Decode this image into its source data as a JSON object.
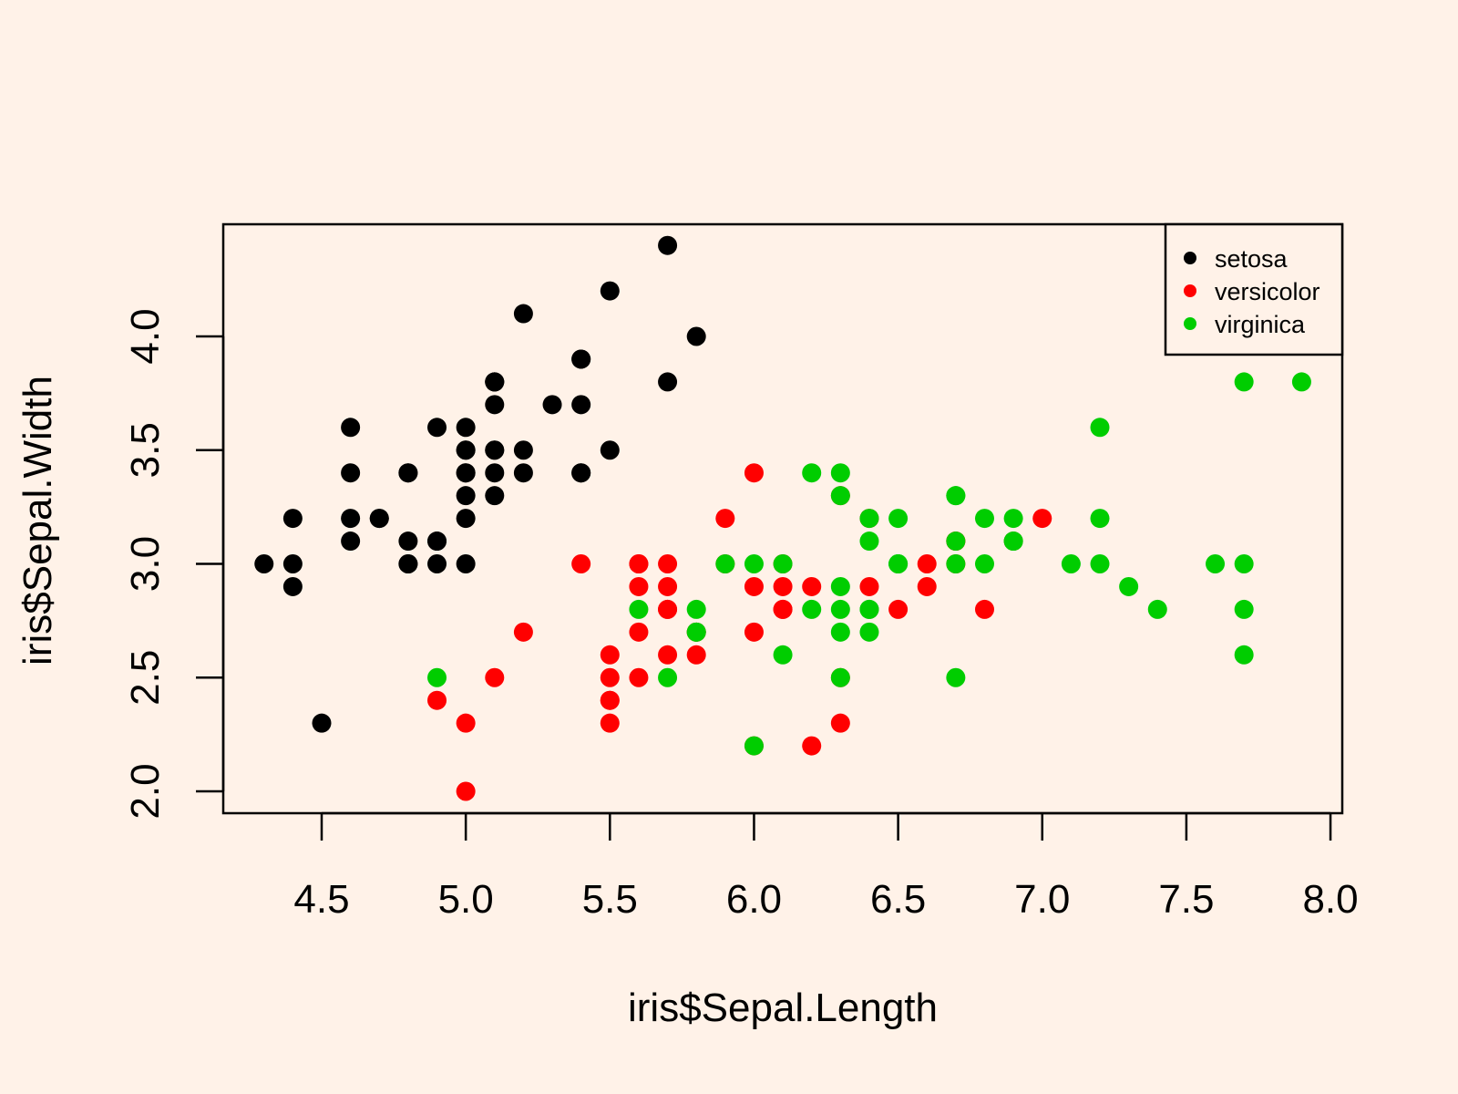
{
  "chart_data": {
    "type": "scatter",
    "title": "",
    "xlabel": "iris$Sepal.Length",
    "ylabel": "iris$Sepal.Width",
    "xlim": [
      4.3,
      7.9
    ],
    "ylim": [
      2.0,
      4.4
    ],
    "xticks": [
      "4.5",
      "5.0",
      "5.5",
      "6.0",
      "6.5",
      "7.0",
      "7.5",
      "8.0"
    ],
    "yticks": [
      "2.0",
      "2.5",
      "3.0",
      "3.5",
      "4.0"
    ],
    "grid": false,
    "legend_position": "top-right",
    "background": "#FFF2E8",
    "series": [
      {
        "name": "setosa",
        "color": "#000000",
        "points": [
          [
            5.1,
            3.5
          ],
          [
            4.9,
            3.0
          ],
          [
            4.7,
            3.2
          ],
          [
            4.6,
            3.1
          ],
          [
            5.0,
            3.6
          ],
          [
            5.4,
            3.9
          ],
          [
            4.6,
            3.4
          ],
          [
            5.0,
            3.4
          ],
          [
            4.4,
            2.9
          ],
          [
            4.9,
            3.1
          ],
          [
            5.4,
            3.7
          ],
          [
            4.8,
            3.4
          ],
          [
            4.8,
            3.0
          ],
          [
            4.3,
            3.0
          ],
          [
            5.8,
            4.0
          ],
          [
            5.7,
            4.4
          ],
          [
            5.4,
            3.9
          ],
          [
            5.1,
            3.5
          ],
          [
            5.7,
            3.8
          ],
          [
            5.1,
            3.8
          ],
          [
            5.4,
            3.4
          ],
          [
            5.1,
            3.7
          ],
          [
            4.6,
            3.6
          ],
          [
            5.1,
            3.3
          ],
          [
            4.8,
            3.4
          ],
          [
            5.0,
            3.0
          ],
          [
            5.0,
            3.4
          ],
          [
            5.2,
            3.5
          ],
          [
            5.2,
            3.4
          ],
          [
            4.7,
            3.2
          ],
          [
            4.8,
            3.1
          ],
          [
            5.4,
            3.4
          ],
          [
            5.2,
            4.1
          ],
          [
            5.5,
            4.2
          ],
          [
            4.9,
            3.1
          ],
          [
            5.0,
            3.2
          ],
          [
            5.5,
            3.5
          ],
          [
            4.9,
            3.6
          ],
          [
            4.4,
            3.0
          ],
          [
            5.1,
            3.4
          ],
          [
            5.0,
            3.5
          ],
          [
            4.5,
            2.3
          ],
          [
            4.4,
            3.2
          ],
          [
            5.0,
            3.5
          ],
          [
            5.1,
            3.8
          ],
          [
            4.8,
            3.0
          ],
          [
            5.1,
            3.8
          ],
          [
            4.6,
            3.2
          ],
          [
            5.3,
            3.7
          ],
          [
            5.0,
            3.3
          ]
        ]
      },
      {
        "name": "versicolor",
        "color": "#FF0000",
        "points": [
          [
            7.0,
            3.2
          ],
          [
            6.4,
            3.2
          ],
          [
            6.9,
            3.1
          ],
          [
            5.5,
            2.3
          ],
          [
            6.5,
            2.8
          ],
          [
            5.7,
            2.8
          ],
          [
            6.3,
            3.3
          ],
          [
            4.9,
            2.4
          ],
          [
            6.6,
            2.9
          ],
          [
            5.2,
            2.7
          ],
          [
            5.0,
            2.0
          ],
          [
            5.9,
            3.0
          ],
          [
            6.0,
            2.2
          ],
          [
            6.1,
            2.9
          ],
          [
            5.6,
            2.9
          ],
          [
            6.7,
            3.1
          ],
          [
            5.6,
            3.0
          ],
          [
            5.8,
            2.7
          ],
          [
            6.2,
            2.2
          ],
          [
            5.6,
            2.5
          ],
          [
            5.9,
            3.2
          ],
          [
            6.1,
            2.8
          ],
          [
            6.3,
            2.5
          ],
          [
            6.1,
            2.8
          ],
          [
            6.4,
            2.9
          ],
          [
            6.6,
            3.0
          ],
          [
            6.8,
            2.8
          ],
          [
            6.7,
            3.0
          ],
          [
            6.0,
            2.9
          ],
          [
            5.7,
            2.6
          ],
          [
            5.5,
            2.4
          ],
          [
            5.5,
            2.4
          ],
          [
            5.8,
            2.7
          ],
          [
            6.0,
            2.7
          ],
          [
            5.4,
            3.0
          ],
          [
            6.0,
            3.4
          ],
          [
            6.7,
            3.1
          ],
          [
            6.3,
            2.3
          ],
          [
            5.6,
            3.0
          ],
          [
            5.5,
            2.5
          ],
          [
            5.5,
            2.6
          ],
          [
            6.1,
            3.0
          ],
          [
            5.8,
            2.6
          ],
          [
            5.0,
            2.3
          ],
          [
            5.6,
            2.7
          ],
          [
            5.7,
            3.0
          ],
          [
            5.7,
            2.9
          ],
          [
            6.2,
            2.9
          ],
          [
            5.1,
            2.5
          ],
          [
            5.7,
            2.8
          ]
        ]
      },
      {
        "name": "virginica",
        "color": "#00CD00",
        "points": [
          [
            6.3,
            3.3
          ],
          [
            5.8,
            2.7
          ],
          [
            7.1,
            3.0
          ],
          [
            6.3,
            2.9
          ],
          [
            6.5,
            3.0
          ],
          [
            7.6,
            3.0
          ],
          [
            4.9,
            2.5
          ],
          [
            7.3,
            2.9
          ],
          [
            6.7,
            2.5
          ],
          [
            7.2,
            3.6
          ],
          [
            6.5,
            3.2
          ],
          [
            6.4,
            2.7
          ],
          [
            6.8,
            3.0
          ],
          [
            5.7,
            2.5
          ],
          [
            5.8,
            2.8
          ],
          [
            6.4,
            3.2
          ],
          [
            6.5,
            3.0
          ],
          [
            7.7,
            3.8
          ],
          [
            7.7,
            2.6
          ],
          [
            6.0,
            2.2
          ],
          [
            6.9,
            3.2
          ],
          [
            5.6,
            2.8
          ],
          [
            7.7,
            2.8
          ],
          [
            6.3,
            2.7
          ],
          [
            6.7,
            3.3
          ],
          [
            7.2,
            3.2
          ],
          [
            6.2,
            2.8
          ],
          [
            6.1,
            3.0
          ],
          [
            6.4,
            2.8
          ],
          [
            7.2,
            3.0
          ],
          [
            7.4,
            2.8
          ],
          [
            7.9,
            3.8
          ],
          [
            6.4,
            2.8
          ],
          [
            6.3,
            2.8
          ],
          [
            6.1,
            2.6
          ],
          [
            7.7,
            3.0
          ],
          [
            6.3,
            3.4
          ],
          [
            6.4,
            3.1
          ],
          [
            6.0,
            3.0
          ],
          [
            6.9,
            3.1
          ],
          [
            6.7,
            3.1
          ],
          [
            6.9,
            3.1
          ],
          [
            5.8,
            2.7
          ],
          [
            6.8,
            3.2
          ],
          [
            6.7,
            3.3
          ],
          [
            6.7,
            3.0
          ],
          [
            6.3,
            2.5
          ],
          [
            6.5,
            3.0
          ],
          [
            6.2,
            3.4
          ],
          [
            5.9,
            3.0
          ]
        ]
      }
    ]
  }
}
